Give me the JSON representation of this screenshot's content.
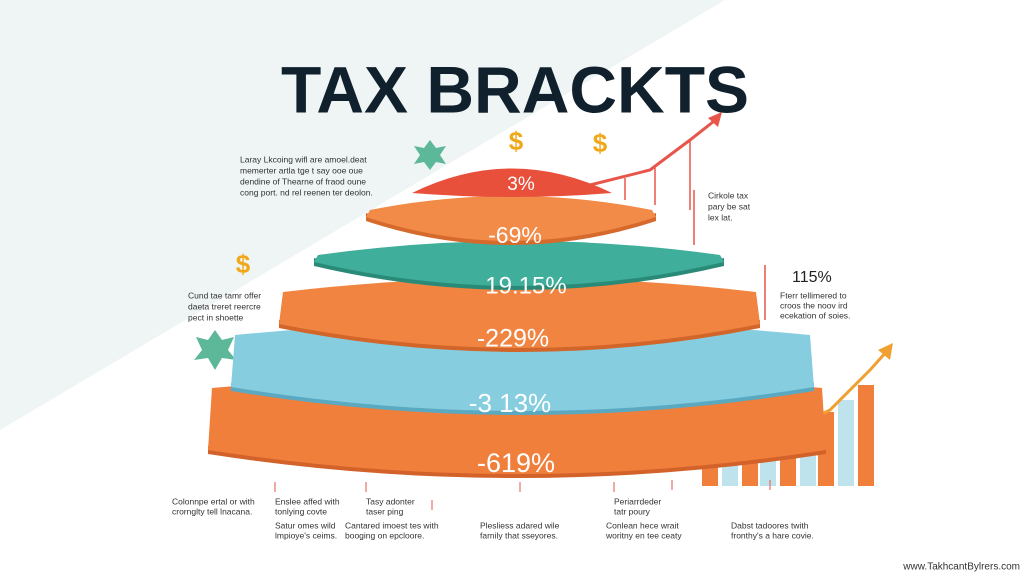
{
  "header": {
    "title": "TAX BRACKTS"
  },
  "coin_symbol": "$",
  "layers": [
    "3%",
    "-69%",
    "19.15%",
    "-229%",
    "-3 13%",
    "-619%"
  ],
  "notes": {
    "left_top": [
      "Laray Lkcoing wifl are amoel.deat",
      "memerter artla tge t say ooe oue",
      "dendine of Thearne of fraod oune",
      "cong port. nd rel reenen ter deolon."
    ],
    "left_mid": [
      "Cund tae tamr offer",
      "daeta treret reercre",
      "pect in shoette"
    ],
    "right_top": [
      "Cirkole tax",
      "pary be sat",
      "lex lat."
    ],
    "right_mid_value": "115%",
    "right_mid": [
      "Fterr tellimered to",
      "croos the noov ird",
      "ecekation of soies."
    ]
  },
  "footer_row1": [
    [
      "Colonnpe ertal or with",
      "crornglty tell lnacana."
    ],
    [
      "Enslee affed with",
      "tonlying covte"
    ],
    [
      "Tasy adonter",
      "taser ping"
    ],
    [
      "Periarrdeder",
      "tatr poury"
    ]
  ],
  "footer_row2": [
    [
      "Satur omes wild",
      "lmpioye's ceims."
    ],
    [
      "Cantared imoest tes with",
      "booging on epcloore."
    ],
    [
      "Plesliess adared wile",
      "farnily that sseyores."
    ],
    [
      "Conlean hece wrait",
      "woritny en tee ceaty"
    ],
    [
      "Dabst tadoores twith",
      "fronthy's a hare covie."
    ]
  ],
  "watermark": "www.TakhcantBylrers.com"
}
